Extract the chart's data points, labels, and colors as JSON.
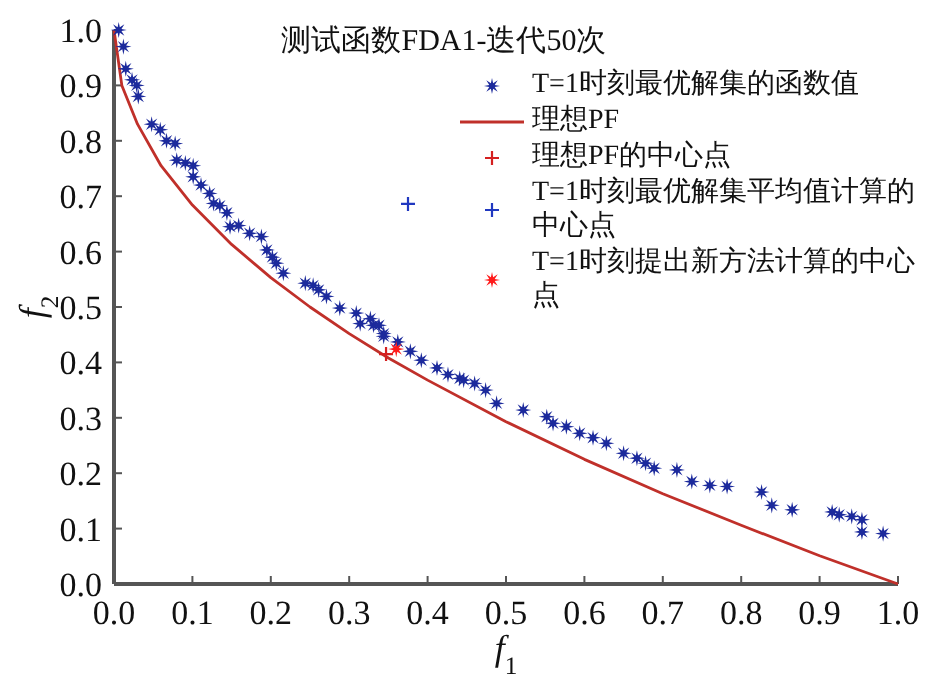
{
  "chart_data": {
    "type": "scatter",
    "title": "测试函数FDA1-迭代50次",
    "xlabel": "f$_{1}$",
    "ylabel": "f$_{2}$",
    "xlim": [
      0,
      1
    ],
    "ylim": [
      0,
      1
    ],
    "xticks": [
      {
        "value": 0,
        "label": "0.0"
      },
      {
        "value": 0.1,
        "label": "0.1"
      },
      {
        "value": 0.2,
        "label": "0.2"
      },
      {
        "value": 0.3,
        "label": "0.3"
      },
      {
        "value": 0.4,
        "label": "0.4"
      },
      {
        "value": 0.5,
        "label": "0.5"
      },
      {
        "value": 0.6,
        "label": "0.6"
      },
      {
        "value": 0.7,
        "label": "0.7"
      },
      {
        "value": 0.8,
        "label": "0.8"
      },
      {
        "value": 0.9,
        "label": "0.9"
      },
      {
        "value": 1,
        "label": "1.0"
      }
    ],
    "yticks": [
      {
        "value": 0,
        "label": "0.0"
      },
      {
        "value": 0.1,
        "label": "0.1"
      },
      {
        "value": 0.2,
        "label": "0.2"
      },
      {
        "value": 0.3,
        "label": "0.3"
      },
      {
        "value": 0.4,
        "label": "0.4"
      },
      {
        "value": 0.5,
        "label": "0.5"
      },
      {
        "value": 0.6,
        "label": "0.6"
      },
      {
        "value": 0.7,
        "label": "0.7"
      },
      {
        "value": 0.8,
        "label": "0.8"
      },
      {
        "value": 0.9,
        "label": "0.9"
      },
      {
        "value": 1,
        "label": "1.0"
      }
    ],
    "grid": false,
    "legend": "top right",
    "series": [
      {
        "name": "T=1时刻最优解集的函数值",
        "type": "scatter",
        "marker": "star",
        "color": "#1c2a9c",
        "x": [
          0.006,
          0.012,
          0.015,
          0.023,
          0.029,
          0.031,
          0.048,
          0.059,
          0.067,
          0.078,
          0.08,
          0.091,
          0.101,
          0.101,
          0.111,
          0.122,
          0.127,
          0.135,
          0.144,
          0.148,
          0.159,
          0.173,
          0.188,
          0.195,
          0.202,
          0.207,
          0.216,
          0.244,
          0.254,
          0.261,
          0.271,
          0.288,
          0.309,
          0.314,
          0.327,
          0.331,
          0.338,
          0.344,
          0.344,
          0.362,
          0.378,
          0.392,
          0.412,
          0.426,
          0.441,
          0.446,
          0.46,
          0.474,
          0.488,
          0.522,
          0.552,
          0.56,
          0.577,
          0.594,
          0.611,
          0.628,
          0.65,
          0.667,
          0.678,
          0.689,
          0.718,
          0.737,
          0.76,
          0.782,
          0.826,
          0.839,
          0.865,
          0.916,
          0.925,
          0.941,
          0.954,
          0.954,
          0.981
        ],
        "values": [
          1.0,
          0.97,
          0.93,
          0.91,
          0.9,
          0.88,
          0.83,
          0.82,
          0.8,
          0.795,
          0.765,
          0.76,
          0.755,
          0.735,
          0.72,
          0.705,
          0.687,
          0.683,
          0.67,
          0.645,
          0.647,
          0.633,
          0.627,
          0.603,
          0.59,
          0.579,
          0.561,
          0.543,
          0.539,
          0.531,
          0.519,
          0.498,
          0.489,
          0.47,
          0.479,
          0.467,
          0.467,
          0.452,
          0.447,
          0.437,
          0.42,
          0.404,
          0.39,
          0.378,
          0.371,
          0.368,
          0.362,
          0.35,
          0.326,
          0.314,
          0.302,
          0.29,
          0.284,
          0.272,
          0.264,
          0.254,
          0.236,
          0.227,
          0.218,
          0.209,
          0.206,
          0.185,
          0.178,
          0.176,
          0.166,
          0.142,
          0.134,
          0.13,
          0.125,
          0.122,
          0.116,
          0.094,
          0.091
        ]
      },
      {
        "name": "理想PF",
        "type": "line",
        "marker": "none",
        "line_style": "solid",
        "color": "#c0302a",
        "x": [
          0,
          0.01,
          0.03,
          0.06,
          0.1,
          0.15,
          0.2,
          0.25,
          0.3,
          0.35,
          0.4,
          0.5,
          0.6,
          0.7,
          0.8,
          0.9,
          1.0
        ],
        "values": [
          1.0,
          0.9,
          0.83,
          0.755,
          0.684,
          0.613,
          0.553,
          0.5,
          0.452,
          0.408,
          0.368,
          0.293,
          0.225,
          0.163,
          0.106,
          0.051,
          0.0
        ]
      },
      {
        "name": "理想PF的中心点",
        "type": "scatter",
        "marker": "cross",
        "color": "#d42020",
        "x": [
          0.347
        ],
        "values": [
          0.415
        ]
      },
      {
        "name": "T=1时刻最优解集平均值计算的中心点",
        "type": "scatter",
        "marker": "cross",
        "color": "#2038c0",
        "x": [
          0.375
        ],
        "values": [
          0.686
        ]
      },
      {
        "name": "T=1时刻提出新方法计算的中心点",
        "type": "scatter",
        "marker": "star",
        "color": "#ff1a1a",
        "x": [
          0.36
        ],
        "values": [
          0.424
        ]
      }
    ]
  }
}
